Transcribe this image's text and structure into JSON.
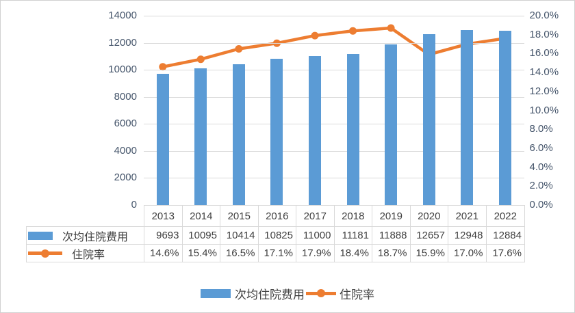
{
  "chart_data": {
    "type": "bar",
    "subtype": "combo-bar-line-with-data-table",
    "title": "",
    "categories": [
      "2013",
      "2014",
      "2015",
      "2016",
      "2017",
      "2018",
      "2019",
      "2020",
      "2021",
      "2022"
    ],
    "series": [
      {
        "name": "次均住院费用",
        "type": "bar",
        "axis": "left",
        "color": "#5B9BD5",
        "values": [
          9693,
          10095,
          10414,
          10825,
          11000,
          11181,
          11888,
          12657,
          12948,
          12884
        ]
      },
      {
        "name": "住院率",
        "type": "line",
        "axis": "right",
        "color": "#ED7D31",
        "values": [
          "14.6%",
          "15.4%",
          "16.5%",
          "17.1%",
          "17.9%",
          "18.4%",
          "18.7%",
          "15.9%",
          "17.0%",
          "17.6%"
        ],
        "values_pct": [
          14.6,
          15.4,
          16.5,
          17.1,
          17.9,
          18.4,
          18.7,
          15.9,
          17.0,
          17.6
        ]
      }
    ],
    "left_axis": {
      "min": 0,
      "max": 14000,
      "step": 2000,
      "ticks_top_to_bottom": [
        "14000",
        "12000",
        "10000",
        "8000",
        "6000",
        "4000",
        "2000",
        "0"
      ]
    },
    "right_axis": {
      "min_label": "0.0%",
      "max_label": "20.0%",
      "step_label": "2.0%",
      "ticks_top_to_bottom": [
        "20.0%",
        "18.0%",
        "16.0%",
        "14.0%",
        "12.0%",
        "10.0%",
        "8.0%",
        "6.0%",
        "4.0%",
        "2.0%",
        "0.0%"
      ]
    },
    "grid": "horizontal-only",
    "data_table_shown": true,
    "legend": {
      "position": "bottom",
      "items": [
        {
          "label": "次均住院费用",
          "marker": "bar-swatch"
        },
        {
          "label": "住院率",
          "marker": "line-with-dot"
        }
      ]
    }
  },
  "colors": {
    "bar": "#5B9BD5",
    "line": "#ED7D31",
    "gridline": "#D9D9D9",
    "table_border": "#D9D9D9",
    "axis_text": "#44546A",
    "table_text": "#404040",
    "background": "#FFFFFF"
  }
}
